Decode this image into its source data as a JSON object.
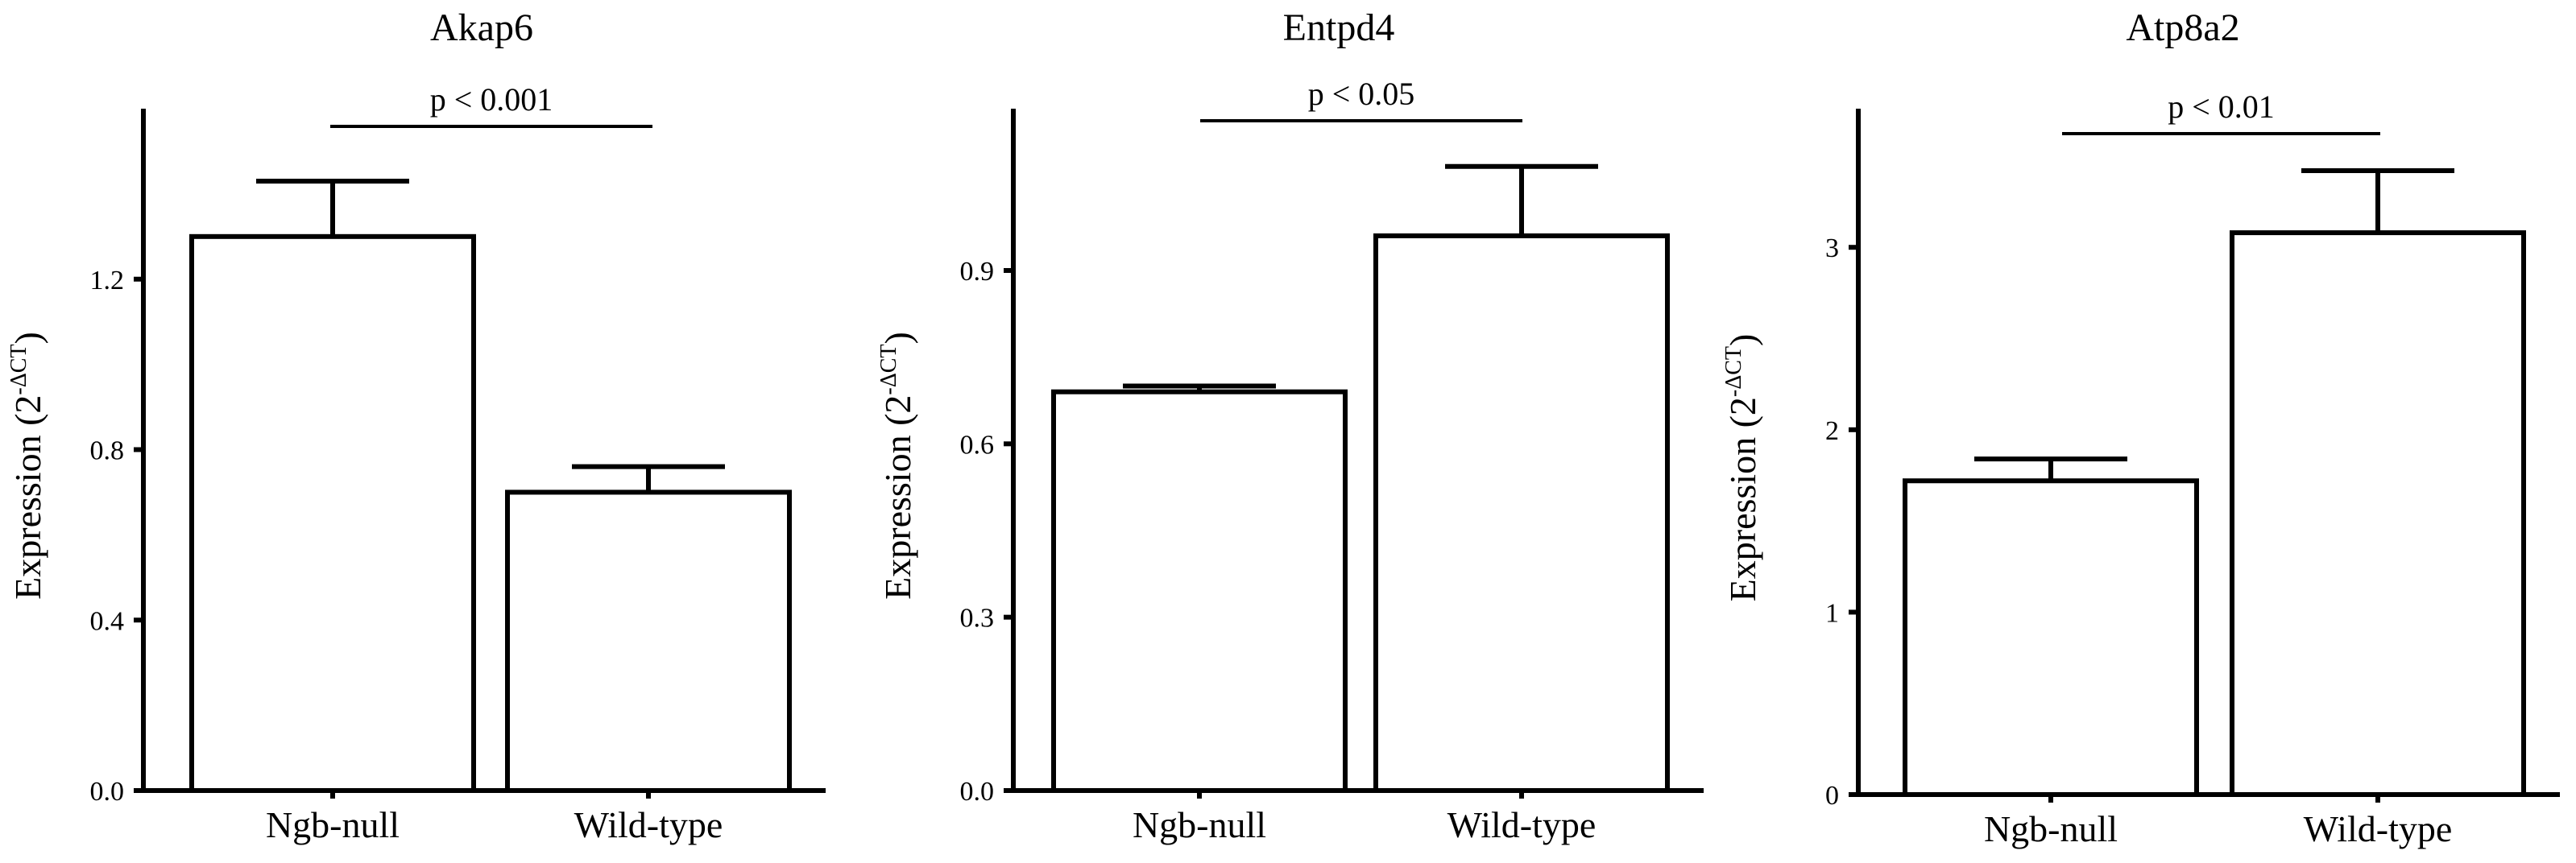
{
  "chart_data": [
    {
      "type": "bar",
      "title": "Akap6",
      "ylabel": "Expression",
      "ylabel_formula": {
        "base": "(2",
        "exponent": "-ΔCT",
        "close": ")"
      },
      "categories": [
        "Ngb-null",
        "Wild-type"
      ],
      "values": [
        1.3,
        0.7
      ],
      "errors": [
        0.13,
        0.06
      ],
      "ylim": [
        0,
        1.6
      ],
      "yticks": [
        0.0,
        0.4,
        0.8,
        1.2
      ],
      "ytick_labels": [
        "0.0",
        "0.4",
        "0.8",
        "1.2"
      ],
      "significance": {
        "label": "p < 0.001"
      },
      "grid": false,
      "legend": "none"
    },
    {
      "type": "bar",
      "title": "Entpd4",
      "ylabel": "Expression",
      "ylabel_formula": {
        "base": "(2",
        "exponent": "-ΔCT",
        "close": ")"
      },
      "categories": [
        "Ngb-null",
        "Wild-type"
      ],
      "values": [
        0.69,
        0.96
      ],
      "errors": [
        0.01,
        0.12
      ],
      "ylim": [
        0,
        1.18
      ],
      "yticks": [
        0.0,
        0.3,
        0.6,
        0.9
      ],
      "ytick_labels": [
        "0.0",
        "0.3",
        "0.6",
        "0.9"
      ],
      "significance": {
        "label": "p < 0.05"
      },
      "grid": false,
      "legend": "none"
    },
    {
      "type": "bar",
      "title": "Atp8a2",
      "ylabel": "Expression",
      "ylabel_formula": {
        "base": "(2",
        "exponent": "-ΔCT",
        "close": ")"
      },
      "categories": [
        "Ngb-null",
        "Wild-type"
      ],
      "values": [
        1.72,
        3.08
      ],
      "errors": [
        0.12,
        0.34
      ],
      "ylim": [
        0,
        3.76
      ],
      "yticks": [
        0,
        1,
        2,
        3
      ],
      "ytick_labels": [
        "0",
        "1",
        "2",
        "3"
      ],
      "significance": {
        "label": "p < 0.01"
      },
      "grid": false,
      "legend": "none"
    }
  ]
}
